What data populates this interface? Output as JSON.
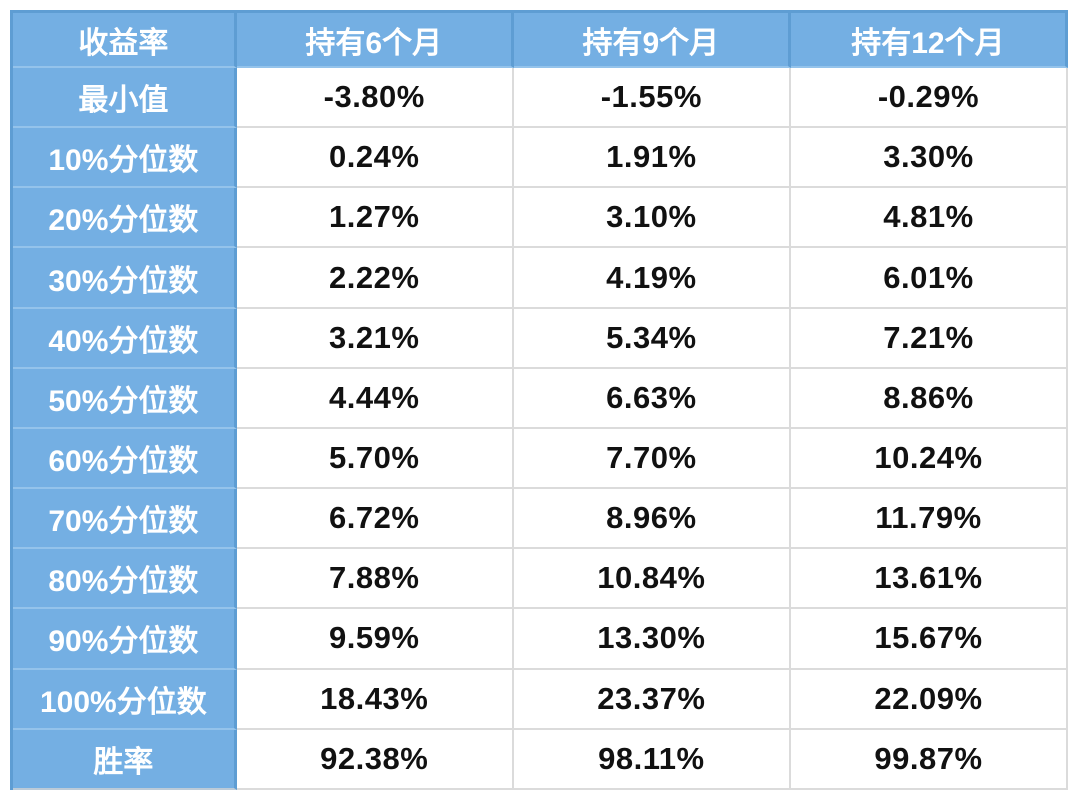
{
  "chart_data": {
    "type": "table",
    "columns": [
      "收益率",
      "持有6个月",
      "持有9个月",
      "持有12个月"
    ],
    "rows": [
      {
        "label": "最小值",
        "values": [
          "-3.80%",
          "-1.55%",
          "-0.29%"
        ]
      },
      {
        "label": "10%分位数",
        "values": [
          "0.24%",
          "1.91%",
          "3.30%"
        ]
      },
      {
        "label": "20%分位数",
        "values": [
          "1.27%",
          "3.10%",
          "4.81%"
        ]
      },
      {
        "label": "30%分位数",
        "values": [
          "2.22%",
          "4.19%",
          "6.01%"
        ]
      },
      {
        "label": "40%分位数",
        "values": [
          "3.21%",
          "5.34%",
          "7.21%"
        ]
      },
      {
        "label": "50%分位数",
        "values": [
          "4.44%",
          "6.63%",
          "8.86%"
        ]
      },
      {
        "label": "60%分位数",
        "values": [
          "5.70%",
          "7.70%",
          "10.24%"
        ]
      },
      {
        "label": "70%分位数",
        "values": [
          "6.72%",
          "8.96%",
          "11.79%"
        ]
      },
      {
        "label": "80%分位数",
        "values": [
          "7.88%",
          "10.84%",
          "13.61%"
        ]
      },
      {
        "label": "90%分位数",
        "values": [
          "9.59%",
          "13.30%",
          "15.67%"
        ]
      },
      {
        "label": "100%分位数",
        "values": [
          "18.43%",
          "23.37%",
          "22.09%"
        ]
      },
      {
        "label": "胜率",
        "values": [
          "92.38%",
          "98.11%",
          "99.87%"
        ]
      }
    ],
    "layout": {
      "header_position": "top-and-left",
      "grid": true
    },
    "colors": {
      "header_fill": "#74AFE3",
      "header_text": "#FFFFFF",
      "cell_text": "#111111",
      "grid_light": "#DBDBDB",
      "grid_blue_dark": "#5E9DD3",
      "grid_blue_light": "#94C3EB"
    }
  }
}
